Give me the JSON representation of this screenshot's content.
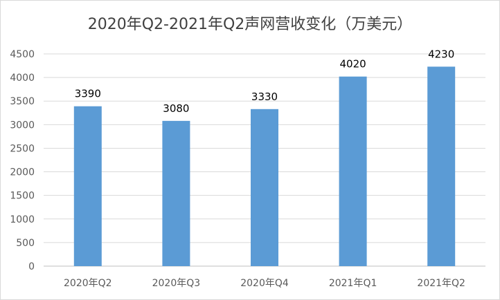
{
  "chart_data": {
    "type": "bar",
    "title": "2020年Q2-2021年Q2声网营收变化（万美元）",
    "xlabel": "",
    "ylabel": "",
    "categories": [
      "2020年Q2",
      "2020年Q3",
      "2020年Q4",
      "2021年Q1",
      "2021年Q2"
    ],
    "values": [
      3390,
      3080,
      3330,
      4020,
      4230
    ],
    "data_labels": [
      "3390",
      "3080",
      "3330",
      "4020",
      "4230"
    ],
    "ylim": [
      0,
      4500
    ],
    "yticks": [
      0,
      500,
      1000,
      1500,
      2000,
      2500,
      3000,
      3500,
      4000,
      4500
    ],
    "ytick_labels": [
      "0",
      "500",
      "1000",
      "1500",
      "2000",
      "2500",
      "3000",
      "3500",
      "4000",
      "4500"
    ],
    "grid": true,
    "legend": "none",
    "colors": {
      "bar": "#5b9bd5",
      "grid": "#d9d9d9",
      "axis": "#bfbfbf",
      "title": "#404040",
      "tick": "#595959"
    }
  }
}
